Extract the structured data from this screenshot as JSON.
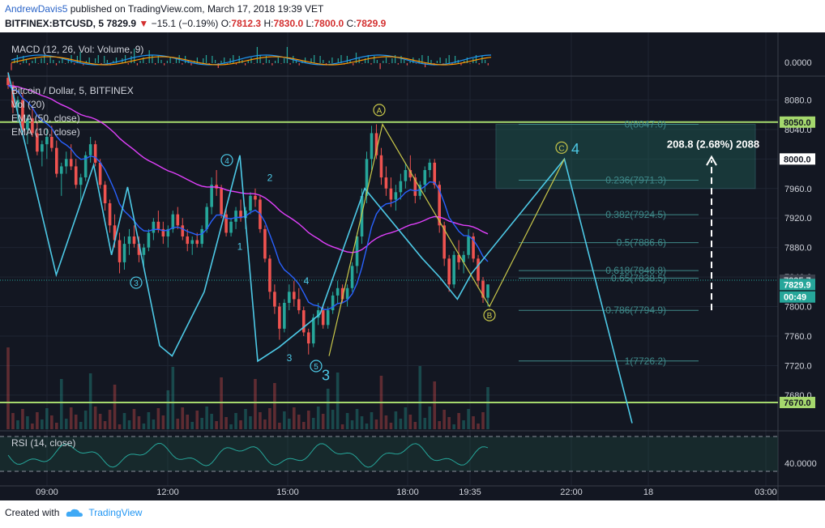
{
  "header": {
    "author": "AndrewDavis5",
    "published": "published on TradingView.com, March 17, 2018 19:39 VET",
    "symbol": "BITFINEX:BTCUSD, 5",
    "last": "7829.9",
    "change": "−15.1 (−0.19%)",
    "o_label": "O:",
    "o": "7812.3",
    "h_label": "H:",
    "h": "7830.0",
    "l_label": "L:",
    "l": "7800.0",
    "c_label": "C:",
    "c": "7829.9"
  },
  "footer": {
    "created_with": "Created with",
    "brand": "TradingView"
  },
  "colors": {
    "bg": "#131722",
    "up": "#26a69a",
    "down": "#ef5350",
    "ema50": "#e040fb",
    "ema10": "#2962ff",
    "wave": "#4dc9e6",
    "abc": "#c9c84a",
    "level": "#a5d86d",
    "fib": "#3f8a8a"
  },
  "chart_data": [
    {
      "type": "line",
      "pane": "macd",
      "title": "MACD (12, 26, Vol: Volume, 9)",
      "y_ticks": [
        "0.0000"
      ]
    },
    {
      "type": "candlestick",
      "pane": "price",
      "title": "Bitcoin / Dollar, 5, BITFINEX",
      "indicators": [
        "Vol (20)",
        "EMA (50, close)",
        "EMA (10, close)"
      ],
      "x_ticks": [
        "09:00",
        "12:00",
        "15:00",
        "18:00",
        "19:35",
        "22:00",
        "18",
        "03:00"
      ],
      "y_ticks": [
        "8080.0",
        "8040.0",
        "8000.0",
        "7960.0",
        "7920.0",
        "7880.0",
        "7840.0",
        "7800.0",
        "7760.0",
        "7720.0",
        "7680.0"
      ],
      "ylim": [
        7670,
        8120
      ],
      "price_labels": [
        {
          "text": "8050.0",
          "value": 8050,
          "style": "level"
        },
        {
          "text": "8000.0",
          "value": 8000,
          "style": "white"
        },
        {
          "text": "7835.7",
          "value": 7835.7,
          "style": "grey"
        },
        {
          "text": "7829.9",
          "value": 7829.9,
          "style": "last"
        },
        {
          "text": "00:49",
          "value": 7813,
          "style": "timer"
        },
        {
          "text": "7670.0",
          "value": 7670,
          "style": "level"
        }
      ],
      "horizontal_levels": [
        8050,
        7670
      ],
      "fib_levels": [
        {
          "label": "0(8047.0)",
          "value": 8047.0
        },
        {
          "label": "0.236(7971.3)",
          "value": 7971.3
        },
        {
          "label": "0.382(7924.5)",
          "value": 7924.5
        },
        {
          "label": "0.5(7886.6)",
          "value": 7886.6
        },
        {
          "label": "0.618(7848.8)",
          "value": 7848.8
        },
        {
          "label": "0.65(7838.5)",
          "value": 7838.5
        },
        {
          "label": "0.786(7794.9)",
          "value": 7794.9
        },
        {
          "label": "1(7726.2)",
          "value": 7726.2
        }
      ],
      "measure_label": "208.8 (2.68%) 2088",
      "wave_labels": [
        "3",
        "4",
        "1",
        "2",
        "3",
        "4",
        "5",
        "3",
        "A",
        "B",
        "C",
        "4"
      ],
      "ohlc": [
        [
          8110,
          8118,
          8095,
          8100
        ],
        [
          8100,
          8105,
          8062,
          8070
        ],
        [
          8070,
          8085,
          8050,
          8080
        ],
        [
          8080,
          8090,
          8035,
          8040
        ],
        [
          8040,
          8060,
          8020,
          8055
        ],
        [
          8055,
          8070,
          8030,
          8035
        ],
        [
          8035,
          8050,
          8005,
          8010
        ],
        [
          8010,
          8025,
          7990,
          8020
        ],
        [
          8020,
          8040,
          8000,
          8030
        ],
        [
          8030,
          8045,
          8010,
          8015
        ],
        [
          8015,
          8025,
          7975,
          7980
        ],
        [
          7980,
          7995,
          7950,
          7990
        ],
        [
          7990,
          8010,
          7980,
          8000
        ],
        [
          8000,
          8020,
          7985,
          7990
        ],
        [
          7990,
          8000,
          7960,
          7965
        ],
        [
          7965,
          7980,
          7940,
          7975
        ],
        [
          7975,
          8010,
          7970,
          8005
        ],
        [
          8005,
          8030,
          7995,
          8020
        ],
        [
          8020,
          8025,
          7990,
          7995
        ],
        [
          7995,
          8000,
          7960,
          7965
        ],
        [
          7965,
          7970,
          7930,
          7940
        ],
        [
          7940,
          7945,
          7900,
          7910
        ],
        [
          7910,
          7925,
          7880,
          7890
        ],
        [
          7890,
          7900,
          7845,
          7860
        ],
        [
          7860,
          7895,
          7850,
          7885
        ],
        [
          7885,
          7905,
          7870,
          7895
        ],
        [
          7895,
          7910,
          7880,
          7885
        ],
        [
          7885,
          7895,
          7860,
          7870
        ],
        [
          7870,
          7885,
          7855,
          7880
        ],
        [
          7880,
          7905,
          7875,
          7900
        ],
        [
          7900,
          7920,
          7890,
          7915
        ],
        [
          7915,
          7930,
          7900,
          7905
        ],
        [
          7905,
          7915,
          7885,
          7895
        ],
        [
          7895,
          7910,
          7880,
          7905
        ],
        [
          7905,
          7930,
          7900,
          7925
        ],
        [
          7925,
          7935,
          7905,
          7910
        ],
        [
          7910,
          7920,
          7890,
          7895
        ],
        [
          7895,
          7905,
          7875,
          7885
        ],
        [
          7885,
          7895,
          7870,
          7890
        ],
        [
          7890,
          7900,
          7880,
          7885
        ],
        [
          7885,
          7910,
          7880,
          7905
        ],
        [
          7905,
          7940,
          7900,
          7935
        ],
        [
          7935,
          7975,
          7925,
          7965
        ],
        [
          7965,
          7985,
          7950,
          7960
        ],
        [
          7960,
          7965,
          7920,
          7925
        ],
        [
          7925,
          7935,
          7895,
          7900
        ],
        [
          7900,
          7920,
          7895,
          7915
        ],
        [
          7915,
          7935,
          7905,
          7930
        ],
        [
          7930,
          7945,
          7915,
          7920
        ],
        [
          7920,
          7935,
          7905,
          7930
        ],
        [
          7930,
          7955,
          7925,
          7950
        ],
        [
          7950,
          7960,
          7935,
          7945
        ],
        [
          7945,
          7950,
          7900,
          7905
        ],
        [
          7905,
          7910,
          7860,
          7865
        ],
        [
          7865,
          7870,
          7810,
          7820
        ],
        [
          7820,
          7830,
          7790,
          7800
        ],
        [
          7800,
          7805,
          7755,
          7770
        ],
        [
          7770,
          7810,
          7765,
          7805
        ],
        [
          7805,
          7830,
          7795,
          7820
        ],
        [
          7820,
          7835,
          7800,
          7810
        ],
        [
          7810,
          7825,
          7790,
          7795
        ],
        [
          7795,
          7800,
          7760,
          7765
        ],
        [
          7765,
          7770,
          7735,
          7750
        ],
        [
          7750,
          7790,
          7745,
          7785
        ],
        [
          7785,
          7805,
          7775,
          7795
        ],
        [
          7795,
          7800,
          7770,
          7775
        ],
        [
          7775,
          7800,
          7770,
          7795
        ],
        [
          7795,
          7820,
          7790,
          7815
        ],
        [
          7815,
          7835,
          7805,
          7825
        ],
        [
          7825,
          7830,
          7805,
          7810
        ],
        [
          7810,
          7830,
          7800,
          7825
        ],
        [
          7825,
          7860,
          7820,
          7855
        ],
        [
          7855,
          7900,
          7845,
          7895
        ],
        [
          7895,
          7960,
          7885,
          7950
        ],
        [
          7950,
          8010,
          7940,
          8000
        ],
        [
          8000,
          8045,
          7985,
          8035
        ],
        [
          8035,
          8047,
          8000,
          8005
        ],
        [
          8005,
          8015,
          7965,
          7975
        ],
        [
          7975,
          7990,
          7950,
          7960
        ],
        [
          7960,
          7975,
          7935,
          7945
        ],
        [
          7945,
          7965,
          7930,
          7955
        ],
        [
          7955,
          7980,
          7945,
          7970
        ],
        [
          7970,
          7995,
          7960,
          7985
        ],
        [
          7985,
          8005,
          7970,
          7975
        ],
        [
          7975,
          7980,
          7940,
          7950
        ],
        [
          7950,
          7970,
          7945,
          7965
        ],
        [
          7965,
          7990,
          7955,
          7985
        ],
        [
          7985,
          8000,
          7975,
          7995
        ],
        [
          7995,
          8000,
          7960,
          7965
        ],
        [
          7965,
          7970,
          7900,
          7910
        ],
        [
          7910,
          7915,
          7855,
          7865
        ],
        [
          7865,
          7870,
          7820,
          7830
        ],
        [
          7830,
          7875,
          7825,
          7870
        ],
        [
          7870,
          7890,
          7850,
          7860
        ],
        [
          7860,
          7875,
          7845,
          7870
        ],
        [
          7870,
          7905,
          7865,
          7895
        ],
        [
          7895,
          7900,
          7860,
          7865
        ],
        [
          7865,
          7870,
          7825,
          7835
        ],
        [
          7835,
          7840,
          7805,
          7812
        ],
        [
          7812,
          7830,
          7800,
          7830
        ]
      ]
    },
    {
      "type": "line",
      "pane": "rsi",
      "title": "RSI (14, close)",
      "y_ticks": [
        "40.0000"
      ]
    }
  ]
}
